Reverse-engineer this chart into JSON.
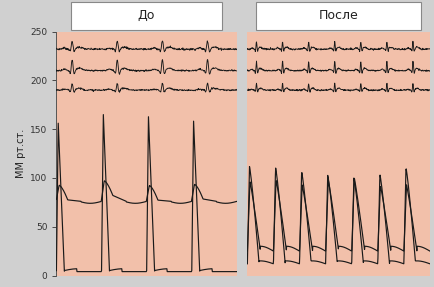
{
  "title_left": "До",
  "title_right": "После",
  "ylabel": "ММ рт.ст.",
  "ylim": [
    0,
    250
  ],
  "panel_bg": "#f2c0aa",
  "line_color": "#1a1a1a",
  "fig_bg": "#d0d0d0",
  "figsize": [
    4.34,
    2.87
  ],
  "dpi": 100
}
